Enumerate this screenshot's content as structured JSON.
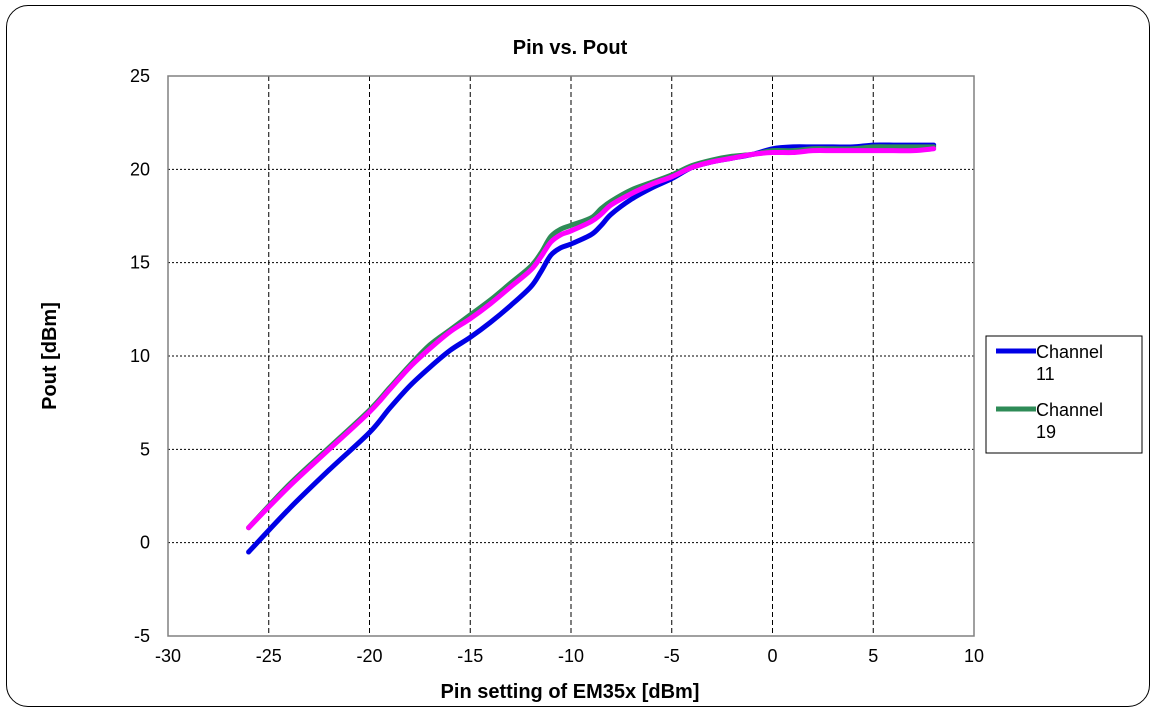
{
  "chart_data": {
    "type": "line",
    "title": "Pin vs. Pout",
    "xlabel": "Pin setting of EM35x [dBm]",
    "ylabel": "Pout [dBm]",
    "xlim": [
      -30,
      10
    ],
    "ylim": [
      -5,
      25
    ],
    "xticks": [
      -30,
      -25,
      -20,
      -15,
      -10,
      -5,
      0,
      5,
      10
    ],
    "yticks": [
      -5,
      0,
      5,
      10,
      15,
      20,
      25
    ],
    "grid": true,
    "legend_position": "right",
    "series": [
      {
        "name": "Channel 11",
        "color": "#0000e6",
        "points": [
          [
            -26,
            -0.5
          ],
          [
            -24,
            1.8
          ],
          [
            -22,
            3.9
          ],
          [
            -20,
            5.9
          ],
          [
            -19,
            7.2
          ],
          [
            -18,
            8.4
          ],
          [
            -17,
            9.4
          ],
          [
            -16,
            10.3
          ],
          [
            -15,
            11.0
          ],
          [
            -14,
            11.8
          ],
          [
            -13,
            12.7
          ],
          [
            -12,
            13.7
          ],
          [
            -11.5,
            14.5
          ],
          [
            -11,
            15.4
          ],
          [
            -10.5,
            15.8
          ],
          [
            -10,
            16.0
          ],
          [
            -9,
            16.5
          ],
          [
            -8.5,
            17.0
          ],
          [
            -8,
            17.6
          ],
          [
            -7,
            18.4
          ],
          [
            -6,
            19.0
          ],
          [
            -5,
            19.5
          ],
          [
            -4,
            20.1
          ],
          [
            -3,
            20.4
          ],
          [
            -2,
            20.6
          ],
          [
            -1,
            20.8
          ],
          [
            0,
            21.1
          ],
          [
            1,
            21.2
          ],
          [
            2,
            21.2
          ],
          [
            3,
            21.2
          ],
          [
            4,
            21.2
          ],
          [
            5,
            21.3
          ],
          [
            6,
            21.3
          ],
          [
            7,
            21.3
          ],
          [
            8,
            21.3
          ]
        ]
      },
      {
        "name": "Channel 19",
        "color": "#2e8b57",
        "points": [
          [
            -26,
            0.8
          ],
          [
            -24,
            3.1
          ],
          [
            -22,
            5.1
          ],
          [
            -20,
            7.1
          ],
          [
            -19,
            8.3
          ],
          [
            -18,
            9.5
          ],
          [
            -17,
            10.6
          ],
          [
            -16,
            11.4
          ],
          [
            -15,
            12.2
          ],
          [
            -14,
            13.0
          ],
          [
            -13,
            13.9
          ],
          [
            -12,
            14.8
          ],
          [
            -11.5,
            15.5
          ],
          [
            -11,
            16.4
          ],
          [
            -10.5,
            16.8
          ],
          [
            -10,
            17.0
          ],
          [
            -9,
            17.4
          ],
          [
            -8.5,
            17.9
          ],
          [
            -8,
            18.3
          ],
          [
            -7,
            18.9
          ],
          [
            -6,
            19.3
          ],
          [
            -5,
            19.7
          ],
          [
            -4,
            20.2
          ],
          [
            -3,
            20.5
          ],
          [
            -2,
            20.7
          ],
          [
            -1,
            20.8
          ],
          [
            0,
            21.0
          ],
          [
            1,
            21.0
          ],
          [
            2,
            21.1
          ],
          [
            3,
            21.1
          ],
          [
            4,
            21.1
          ],
          [
            5,
            21.2
          ],
          [
            6,
            21.2
          ],
          [
            7,
            21.2
          ],
          [
            8,
            21.2
          ]
        ]
      },
      {
        "color": "#ff00ff",
        "points": [
          [
            -26,
            0.8
          ],
          [
            -24,
            3.0
          ],
          [
            -22,
            5.0
          ],
          [
            -20,
            7.0
          ],
          [
            -19,
            8.2
          ],
          [
            -18,
            9.4
          ],
          [
            -17,
            10.4
          ],
          [
            -16,
            11.3
          ],
          [
            -15,
            12.0
          ],
          [
            -14,
            12.8
          ],
          [
            -13,
            13.7
          ],
          [
            -12,
            14.6
          ],
          [
            -11.5,
            15.3
          ],
          [
            -11,
            16.1
          ],
          [
            -10.5,
            16.5
          ],
          [
            -10,
            16.7
          ],
          [
            -9,
            17.2
          ],
          [
            -8.5,
            17.6
          ],
          [
            -8,
            18.1
          ],
          [
            -7,
            18.7
          ],
          [
            -6,
            19.2
          ],
          [
            -5,
            19.6
          ],
          [
            -4,
            20.1
          ],
          [
            -3,
            20.4
          ],
          [
            -2,
            20.6
          ],
          [
            -1,
            20.8
          ],
          [
            0,
            20.9
          ],
          [
            1,
            20.9
          ],
          [
            2,
            21.0
          ],
          [
            3,
            21.0
          ],
          [
            4,
            21.0
          ],
          [
            5,
            21.0
          ],
          [
            6,
            21.0
          ],
          [
            7,
            21.0
          ],
          [
            8,
            21.1
          ]
        ]
      }
    ]
  }
}
